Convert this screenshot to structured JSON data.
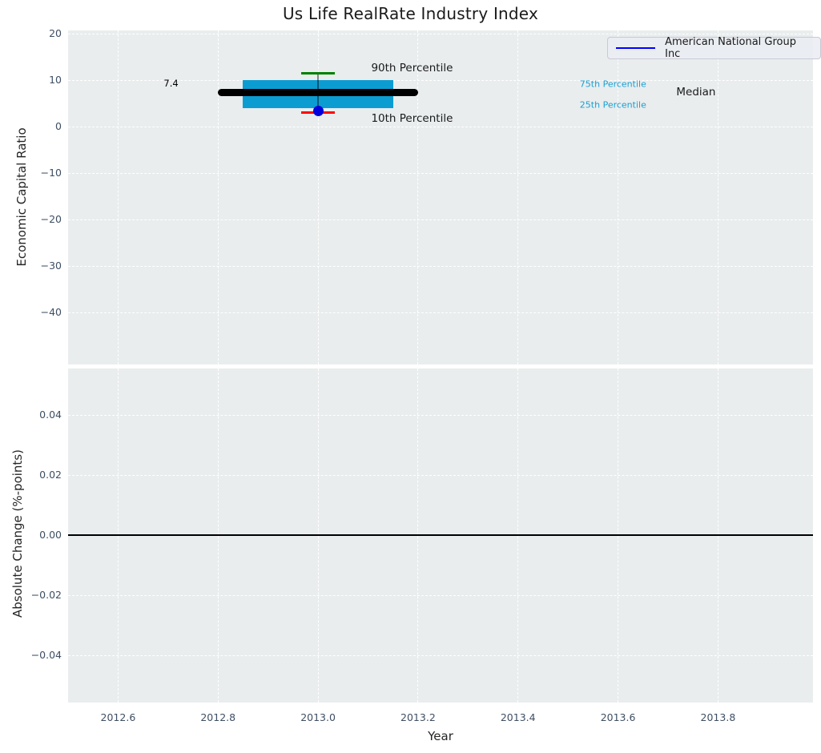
{
  "figure": {
    "title": "Us Life RealRate Industry Index",
    "background": "#ffffff",
    "axes_background": "#e9edee",
    "grid_color": "#ffffff",
    "tick_label_color": "#3e4f63"
  },
  "chart_data": [
    {
      "type": "boxplot",
      "title": "Us Life RealRate Industry Index",
      "ylabel": "Economic Capital Ratio",
      "xlabel": "Year",
      "xlim": [
        2012.5,
        2013.99
      ],
      "ylim": [
        -51.2,
        20.7
      ],
      "grid": true,
      "xtick_values": [
        2012.6,
        2012.8,
        2013.0,
        2013.2,
        2013.4,
        2013.6,
        2013.8
      ],
      "xtick_labels": [
        "2012.6",
        "2012.8",
        "2013.0",
        "2013.2",
        "2013.4",
        "2013.6",
        "2013.8"
      ],
      "ytick_values": [
        20,
        10,
        0,
        -10,
        -20,
        -30,
        -40
      ],
      "ytick_labels": [
        "20",
        "10",
        "0",
        "−10",
        "−20",
        "−30",
        "−40"
      ],
      "legend": {
        "position": "upper right",
        "entries": [
          {
            "label": "American National Group Inc",
            "color": "#0000ff"
          }
        ]
      },
      "box": {
        "x": 2013.0,
        "p10": 3.0,
        "p25": 4.0,
        "median": 7.4,
        "p75": 10.0,
        "p90": 11.5,
        "box_left": 2012.85,
        "box_right": 2013.15,
        "median_left": 2012.8,
        "median_right": 2013.2,
        "cap_halfwidth": 0.033,
        "box_color": "#0b9dd2",
        "median_color": "#000000",
        "p90_cap_color": "#008000",
        "p10_cap_color": "#ff0000",
        "whisker_color": "rgba(0,0,0,0.45)"
      },
      "company_point": {
        "name": "American National Group Inc",
        "x": 2013.0,
        "y": 3.4,
        "color": "#0000dd"
      },
      "annotations": [
        {
          "id": "median-value-label",
          "text": "7.4",
          "x": 2012.706,
          "y": 9.3,
          "color": "#000000",
          "size": 11.5
        },
        {
          "id": "p90-annotation",
          "text": "90th Percentile",
          "x": 2013.188,
          "y": 12.65,
          "color": "#1a1a1a",
          "size": 13.5
        },
        {
          "id": "p10-annotation",
          "text": "10th Percentile",
          "x": 2013.188,
          "y": 1.7,
          "color": "#1a1a1a",
          "size": 13.5
        },
        {
          "id": "p75-annotation",
          "text": "75th Percentile",
          "x": 2013.59,
          "y": 9.1,
          "color": "#1a9fd0",
          "size": 11
        },
        {
          "id": "p25-annotation",
          "text": "25th Percentile",
          "x": 2013.59,
          "y": 4.6,
          "color": "#1a9fd0",
          "size": 11
        },
        {
          "id": "median-annotation",
          "text": "Median",
          "x": 2013.756,
          "y": 7.4,
          "color": "#1a1a1a",
          "size": 13.5
        }
      ]
    },
    {
      "type": "line",
      "ylabel": "Absolute Change (%-points)",
      "xlabel": "Year",
      "xlim": [
        2012.5,
        2013.99
      ],
      "ylim": [
        -0.0557,
        0.0555
      ],
      "grid": true,
      "xtick_values": [
        2012.6,
        2012.8,
        2013.0,
        2013.2,
        2013.4,
        2013.6,
        2013.8
      ],
      "xtick_labels": [
        "2012.6",
        "2012.8",
        "2013.0",
        "2013.2",
        "2013.4",
        "2013.6",
        "2013.8"
      ],
      "ytick_values": [
        0.04,
        0.02,
        0.0,
        -0.02,
        -0.04
      ],
      "ytick_labels": [
        "0.04",
        "0.02",
        "0.00",
        "−0.02",
        "−0.04"
      ],
      "series": [
        {
          "name": "zero-line",
          "x": [
            2012.5,
            2013.99
          ],
          "y": [
            0,
            0
          ],
          "color": "#000000",
          "linewidth": 2
        }
      ]
    }
  ]
}
